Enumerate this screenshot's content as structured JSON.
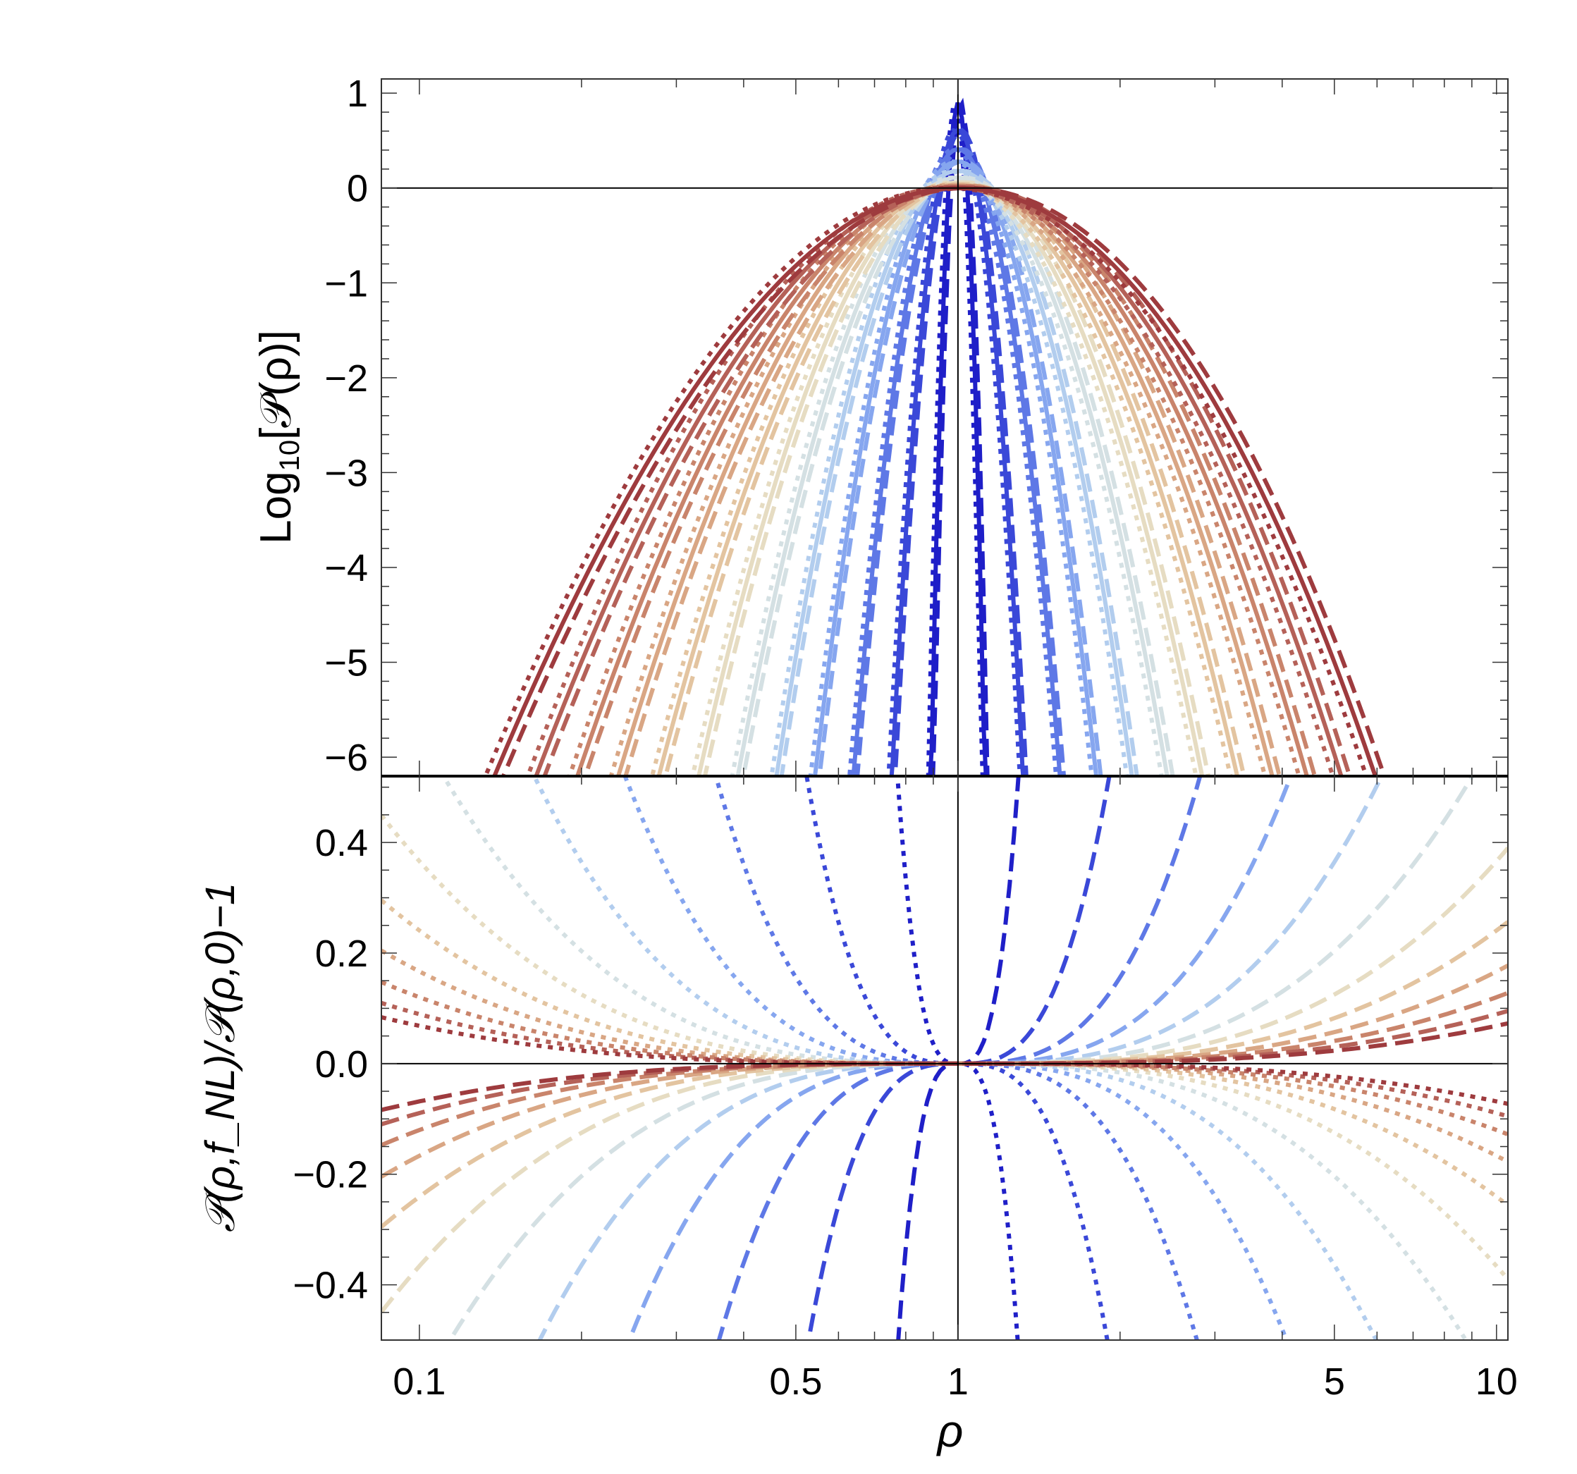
{
  "chart_data": [
    {
      "type": "line",
      "panel": "top",
      "ylabel_main": "Log",
      "ylabel_sub": "10",
      "ylabel_rest": "[𝒫(ρ)]",
      "xscale": "log",
      "xlim": [
        0.085,
        10.5
      ],
      "ylim": [
        -6.2,
        1.15
      ],
      "yticks": [
        1,
        0,
        -1,
        -2,
        -3,
        -4,
        -5,
        -6
      ],
      "ytick_labels": [
        "1",
        "0",
        "−1",
        "−2",
        "−3",
        "−4",
        "−5",
        "−6"
      ],
      "reference_lines": {
        "x": 1,
        "y": 0
      },
      "styles": [
        "solid",
        "dashed",
        "dotted"
      ],
      "palette": [
        "#1f1fc8",
        "#3a48d8",
        "#5e78e6",
        "#86a6ef",
        "#b2cdee",
        "#d4e0e3",
        "#e6dcc2",
        "#e3c4a0",
        "#d9a684",
        "#c9846b",
        "#b56158",
        "#9e3b3e"
      ],
      "sigma": [
        0.02,
        0.05,
        0.08,
        0.11,
        0.14,
        0.17,
        0.2,
        0.23,
        0.26,
        0.29,
        0.32,
        0.35
      ],
      "peak_log10": [
        0.9,
        0.61,
        0.41,
        0.28,
        0.18,
        0.11,
        0.06,
        0.04,
        0.03,
        0.02,
        0.01,
        0.0
      ]
    },
    {
      "type": "line",
      "panel": "bottom",
      "ylabel": "𝒫(ρ,f_NL)/𝒫(ρ,0)−1",
      "xlabel": "ρ",
      "xscale": "log",
      "xlim": [
        0.085,
        10.5
      ],
      "ylim": [
        -0.5,
        0.52
      ],
      "yticks": [
        0.4,
        0.2,
        0.0,
        -0.2,
        -0.4
      ],
      "ytick_labels": [
        "0.4",
        "0.2",
        "0.0",
        "−0.2",
        "−0.4"
      ],
      "xticks": [
        0.1,
        0.5,
        1,
        5,
        10
      ],
      "xtick_labels": [
        "0.1",
        "0.5",
        "1",
        "5",
        "10"
      ],
      "reference_lines": {
        "x": 1,
        "y": 0
      },
      "styles": [
        "dashed",
        "dotted"
      ]
    }
  ]
}
